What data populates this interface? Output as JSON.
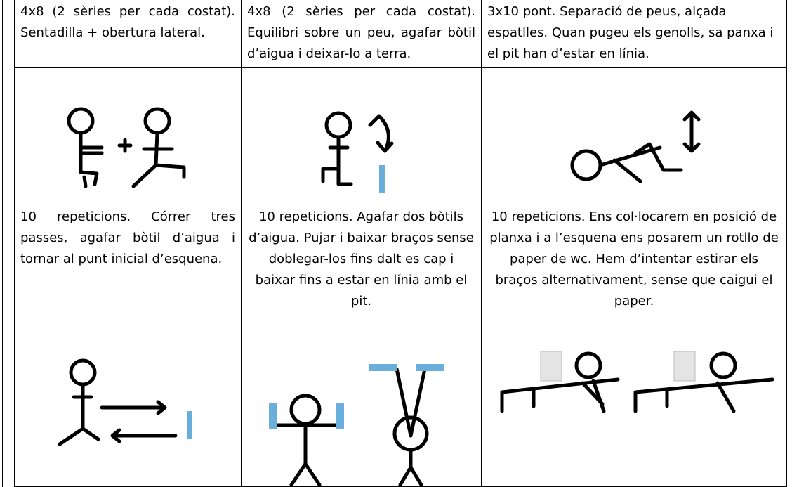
{
  "table": {
    "rows": [
      [
        "4x8 (2 sèries per cada costat). Sentadilla + obertura lateral.",
        "4x8 (2 sèries per cada costat). Equilibri sobre un peu, agafar bòtil d’aigua i deixar-lo a terra.",
        "3x10 pont. Separació de peus, alçada espatlles. Quan pugeu els genolls, sa panxa i el pit han d’estar en línia."
      ],
      [
        "10 repeticions. Córrer tres passes, agafar bòtil d’aigua i tornar al punt inicial d’esquena.",
        "10 repeticions. Agafar dos bòtils d’aigua. Pujar i baixar braços sense doblegar-los fins dalt es cap i baixar fins a estar en línia amb el pit.",
        "10 repeticions. Ens col·locarem en posició de planxa i a l’esquena ens posarem un rotllo de paper de wc. Hem d’intentar estirar els braços alternativament, sense que caigui el paper."
      ]
    ]
  }
}
